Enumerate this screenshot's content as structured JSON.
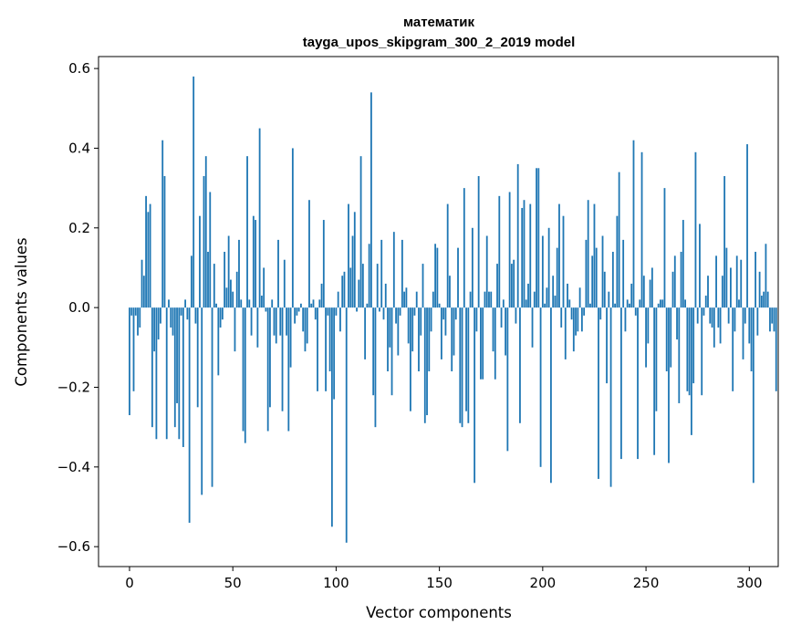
{
  "chart_data": {
    "type": "bar",
    "title": "математик",
    "subtitle": "tayga_upos_skipgram_300_2_2019 model",
    "xlabel": "Vector components",
    "ylabel": "Components values",
    "xlim": [
      -15,
      314
    ],
    "ylim": [
      -0.65,
      0.63
    ],
    "xticks": [
      0,
      50,
      100,
      150,
      200,
      250,
      300
    ],
    "yticks": [
      -0.6,
      -0.4,
      -0.2,
      0.0,
      0.2,
      0.4,
      0.6
    ],
    "xtick_labels": [
      "0",
      "50",
      "100",
      "150",
      "200",
      "250",
      "300"
    ],
    "ytick_labels": [
      "−0.6",
      "−0.4",
      "−0.2",
      "0.0",
      "0.2",
      "0.4",
      "0.6"
    ],
    "bar_color": "#1f77b4",
    "values": [
      -0.27,
      -0.02,
      -0.21,
      -0.02,
      -0.07,
      -0.05,
      0.12,
      0.08,
      0.28,
      0.24,
      0.26,
      -0.3,
      -0.11,
      -0.33,
      -0.08,
      -0.04,
      0.42,
      0.33,
      -0.33,
      0.02,
      -0.05,
      -0.07,
      -0.3,
      -0.24,
      -0.33,
      -0.02,
      -0.35,
      0.02,
      -0.03,
      -0.54,
      0.13,
      0.58,
      -0.04,
      -0.25,
      0.23,
      -0.47,
      0.33,
      0.38,
      0.14,
      0.29,
      -0.45,
      0.11,
      0.01,
      -0.17,
      -0.05,
      -0.03,
      0.14,
      0.05,
      0.18,
      0.07,
      0.04,
      -0.11,
      0.09,
      0.17,
      0.02,
      -0.31,
      -0.34,
      0.38,
      0.02,
      -0.07,
      0.23,
      0.22,
      -0.1,
      0.45,
      0.03,
      0.1,
      -0.01,
      -0.31,
      -0.25,
      0.02,
      -0.07,
      -0.09,
      0.17,
      -0.07,
      -0.26,
      0.12,
      -0.07,
      -0.31,
      -0.15,
      0.4,
      -0.04,
      -0.02,
      -0.01,
      0.01,
      -0.06,
      -0.11,
      -0.09,
      0.27,
      0.01,
      0.02,
      -0.03,
      -0.21,
      0.02,
      0.06,
      0.22,
      -0.21,
      -0.02,
      -0.16,
      -0.55,
      -0.23,
      -0.02,
      0.04,
      -0.06,
      0.08,
      0.09,
      -0.59,
      0.26,
      0.1,
      0.18,
      0.24,
      -0.01,
      0.07,
      0.38,
      0.11,
      -0.13,
      0.01,
      0.16,
      0.54,
      -0.22,
      -0.3,
      0.11,
      -0.01,
      0.17,
      -0.03,
      0.06,
      -0.16,
      -0.1,
      -0.22,
      0.19,
      -0.04,
      -0.12,
      -0.02,
      0.17,
      0.04,
      0.05,
      -0.09,
      -0.26,
      -0.11,
      -0.02,
      0.04,
      -0.16,
      -0.07,
      0.11,
      -0.29,
      -0.27,
      -0.16,
      -0.06,
      0.04,
      0.16,
      0.15,
      0.01,
      -0.13,
      -0.03,
      -0.07,
      0.26,
      0.08,
      -0.16,
      -0.12,
      -0.03,
      0.15,
      -0.29,
      -0.3,
      0.3,
      -0.26,
      -0.29,
      0.04,
      0.2,
      -0.44,
      -0.06,
      0.33,
      -0.18,
      -0.18,
      0.04,
      0.18,
      0.04,
      0.04,
      -0.11,
      -0.18,
      0.11,
      0.28,
      -0.05,
      0.02,
      -0.12,
      -0.36,
      0.29,
      0.11,
      0.12,
      -0.04,
      0.36,
      -0.29,
      0.25,
      0.27,
      0.02,
      0.06,
      0.26,
      -0.1,
      0.04,
      0.35,
      0.35,
      -0.4,
      0.18,
      0.01,
      0.05,
      0.2,
      -0.44,
      0.08,
      0.03,
      0.15,
      0.26,
      -0.05,
      0.23,
      -0.13,
      0.06,
      0.02,
      -0.03,
      -0.11,
      -0.07,
      -0.06,
      0.05,
      -0.06,
      -0.02,
      0.17,
      0.27,
      0.01,
      0.13,
      0.26,
      0.15,
      -0.43,
      -0.03,
      0.18,
      0.09,
      -0.19,
      0.04,
      -0.45,
      0.14,
      0.01,
      0.23,
      0.34,
      -0.38,
      0.17,
      -0.06,
      0.02,
      0.01,
      0.06,
      0.42,
      -0.02,
      -0.38,
      0.02,
      0.39,
      0.08,
      -0.15,
      -0.09,
      0.07,
      0.1,
      -0.37,
      -0.26,
      0.01,
      0.02,
      0.02,
      0.3,
      -0.16,
      -0.39,
      -0.15,
      0.09,
      0.13,
      -0.08,
      -0.24,
      0.14,
      0.22,
      0.02,
      -0.21,
      -0.22,
      -0.32,
      -0.19,
      0.39,
      -0.04,
      0.21,
      -0.22,
      -0.02,
      0.03,
      0.08,
      -0.04,
      -0.05,
      -0.1,
      0.13,
      -0.05,
      -0.09,
      0.08,
      0.33,
      0.15,
      -0.04,
      0.1,
      -0.21,
      -0.06,
      0.13,
      0.02,
      0.12,
      -0.13,
      -0.04,
      0.41,
      -0.09,
      -0.16,
      -0.44,
      0.14,
      -0.07,
      0.09,
      0.03,
      0.04,
      0.16,
      0.04,
      -0.06,
      -0.04,
      -0.06,
      -0.21
    ]
  }
}
